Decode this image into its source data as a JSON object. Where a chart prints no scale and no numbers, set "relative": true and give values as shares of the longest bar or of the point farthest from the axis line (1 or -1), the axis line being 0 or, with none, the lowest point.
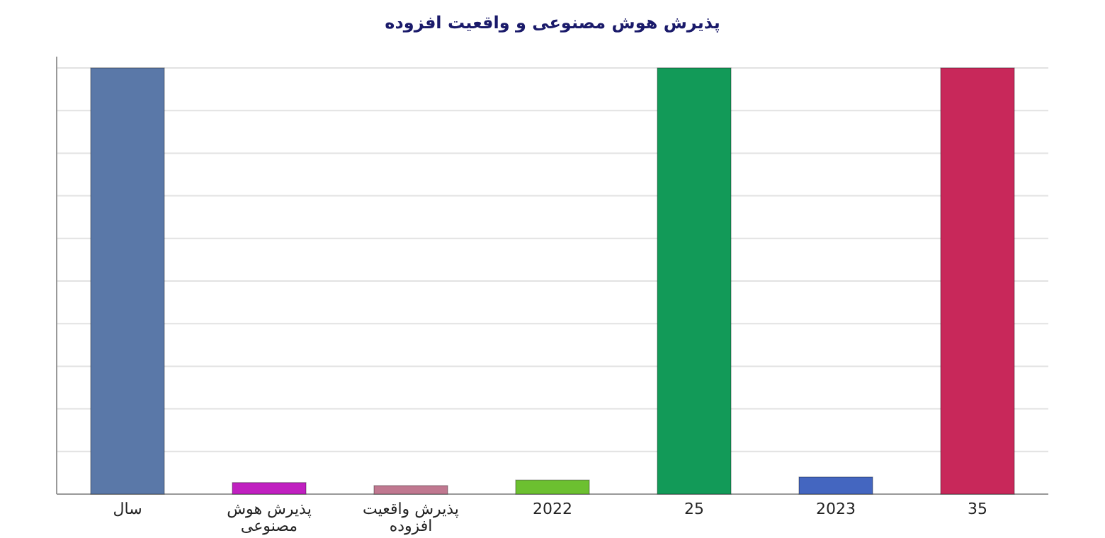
{
  "chart_data": {
    "type": "bar",
    "title": "پذیرش هوش مصنوعی و واقعیت افزوده",
    "categories": [
      "سال",
      "پذیرش هوش مصنوعی",
      "پذیرش واقعیت افزوده",
      "2022",
      "25",
      "2023",
      "35"
    ],
    "values": [
      1,
      0.027,
      0.02,
      0.033,
      1,
      0.04,
      1
    ],
    "colors": [
      "#5a78a8",
      "#c020c0",
      "#c07890",
      "#6cc030",
      "#129a58",
      "#4466c0",
      "#c8285a"
    ],
    "relative": true,
    "grid": "y"
  }
}
